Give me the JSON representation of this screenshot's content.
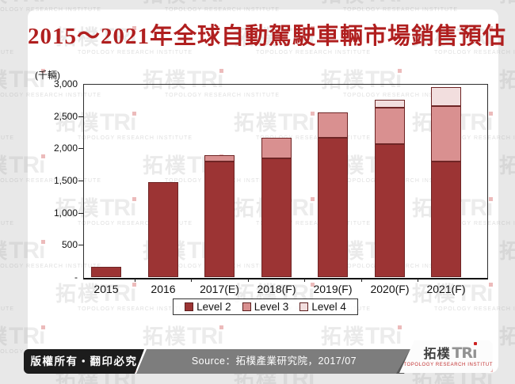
{
  "title": "2015～2021年全球自動駕駛車輛市場銷售預估",
  "unit_label": "(千輛)",
  "chart_data": {
    "type": "bar",
    "stacked": true,
    "title": "2015～2021年全球自動駕駛車輛市場銷售預估",
    "ylabel": "(千輛)",
    "ylim": [
      0,
      3000
    ],
    "ytick_values": [
      0,
      500,
      1000,
      1500,
      2000,
      2500,
      3000
    ],
    "ytick_labels": [
      "-",
      "500",
      "1,000",
      "1,500",
      "2,000",
      "2,500",
      "3,000"
    ],
    "grid": false,
    "legend_position": "bottom",
    "categories": [
      "2015",
      "2016",
      "2017(E)",
      "2018(F)",
      "2019(F)",
      "2020(F)",
      "2021(F)"
    ],
    "series": [
      {
        "name": "Level 2",
        "color": "#9c3434",
        "values": [
          160,
          1480,
          1800,
          1850,
          2170,
          2070,
          1800
        ]
      },
      {
        "name": "Level 3",
        "color": "#d99090",
        "values": [
          0,
          0,
          100,
          320,
          390,
          570,
          860
        ]
      },
      {
        "name": "Level 4",
        "color": "#f2dede",
        "values": [
          0,
          0,
          0,
          0,
          0,
          120,
          300
        ]
      }
    ],
    "totals": [
      160,
      1480,
      1900,
      2170,
      2560,
      2760,
      2960
    ]
  },
  "footer": {
    "copyright": "版權所有‧翻印必究",
    "source": "Source：拓樸產業研究院，2017/07"
  },
  "logo": {
    "cjk": "拓樸",
    "latin": "TR",
    "i": "ı",
    "subtitle": "TOPOLOGY RESEARCH INSTITUTE"
  },
  "watermark": {
    "cjk": "拓樸",
    "latin": "TRı",
    "subtitle": "TOPOLOGY RESEARCH INSTITUTE"
  },
  "colors": {
    "title_red": "#b01f1f",
    "level2": "#9c3434",
    "level3": "#d99090",
    "level4": "#f2dede",
    "bar_border": "#6e2525",
    "footer_black": "#1c1c1c",
    "footer_gray": "#7d7d7d",
    "logo_red": "#cc2222"
  }
}
